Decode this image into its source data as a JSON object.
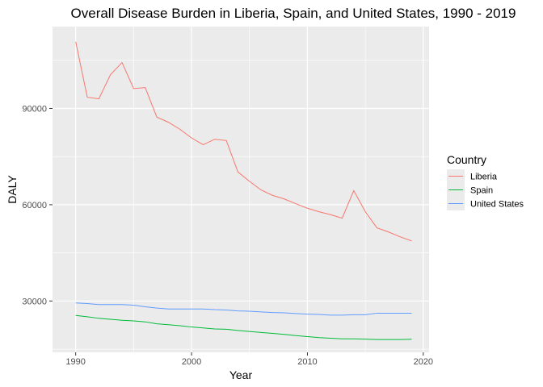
{
  "chart_data": {
    "type": "line",
    "title": "Overall Disease Burden in Liberia, Spain, and United States, 1990 - 2019",
    "xlabel": "Year",
    "ylabel": "DALY",
    "xlim": [
      1988,
      2020.5
    ],
    "ylim": [
      14000,
      115500
    ],
    "x_ticks": [
      1990,
      2000,
      2010,
      2020
    ],
    "y_ticks": [
      30000,
      60000,
      90000
    ],
    "x_tick_labels": [
      "1990",
      "2000",
      "2010",
      "2020"
    ],
    "y_tick_labels": [
      "30000",
      "60000",
      "90000"
    ],
    "grid": true,
    "legend_position": "right",
    "legend_title": "Country",
    "x": [
      1990,
      1991,
      1992,
      1993,
      1994,
      1995,
      1996,
      1997,
      1998,
      1999,
      2000,
      2001,
      2002,
      2003,
      2004,
      2005,
      2006,
      2007,
      2008,
      2009,
      2010,
      2011,
      2012,
      2013,
      2014,
      2015,
      2016,
      2017,
      2018,
      2019
    ],
    "series": [
      {
        "name": "Liberia",
        "color": "#F8766D",
        "values": [
          110800,
          93500,
          93000,
          100500,
          104300,
          96200,
          96500,
          87300,
          85700,
          83500,
          80800,
          78700,
          80400,
          80000,
          70200,
          67300,
          64600,
          62900,
          61800,
          60300,
          58900,
          57800,
          56900,
          55800,
          64400,
          57800,
          52800,
          51500,
          50000,
          48700
        ]
      },
      {
        "name": "Spain",
        "color": "#00BA38",
        "values": [
          25500,
          25100,
          24600,
          24300,
          24000,
          23800,
          23500,
          22900,
          22600,
          22300,
          21900,
          21600,
          21300,
          21200,
          20800,
          20500,
          20200,
          19900,
          19600,
          19200,
          18900,
          18600,
          18400,
          18200,
          18200,
          18100,
          18000,
          18000,
          18000,
          18100
        ]
      },
      {
        "name": "United States",
        "color": "#619CFF",
        "values": [
          29400,
          29200,
          28900,
          28900,
          28900,
          28700,
          28200,
          27800,
          27500,
          27500,
          27500,
          27500,
          27300,
          27200,
          26900,
          26800,
          26600,
          26400,
          26300,
          26100,
          25900,
          25800,
          25600,
          25600,
          25700,
          25700,
          26200,
          26200,
          26200,
          26200
        ]
      }
    ]
  }
}
